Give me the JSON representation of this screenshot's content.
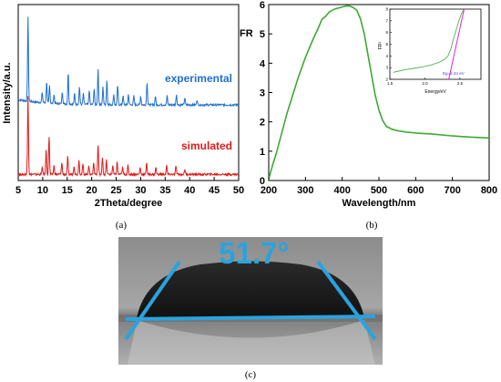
{
  "chart_data": [
    {
      "type": "line",
      "panel_label": "(a)",
      "xlabel": "2Theta/degree",
      "ylabel": "Intensity/a.u.",
      "xlim": [
        5,
        50
      ],
      "xticks": [
        "5",
        "10",
        "15",
        "20",
        "25",
        "30",
        "35",
        "40",
        "45",
        "50"
      ],
      "yticks": [],
      "grid": false,
      "series": [
        {
          "name": "experimental",
          "color": "#1f6fd1",
          "baseline": 0.43,
          "peaks": [
            {
              "x": 7.0,
              "h": 0.48
            },
            {
              "x": 9.9,
              "h": 0.06
            },
            {
              "x": 10.8,
              "h": 0.12
            },
            {
              "x": 11.4,
              "h": 0.1
            },
            {
              "x": 12.3,
              "h": 0.05
            },
            {
              "x": 14.0,
              "h": 0.07
            },
            {
              "x": 15.2,
              "h": 0.18
            },
            {
              "x": 16.5,
              "h": 0.06
            },
            {
              "x": 17.5,
              "h": 0.1
            },
            {
              "x": 18.3,
              "h": 0.06
            },
            {
              "x": 19.5,
              "h": 0.08
            },
            {
              "x": 20.5,
              "h": 0.09
            },
            {
              "x": 21.3,
              "h": 0.2
            },
            {
              "x": 22.3,
              "h": 0.1
            },
            {
              "x": 23.1,
              "h": 0.14
            },
            {
              "x": 24.5,
              "h": 0.06
            },
            {
              "x": 25.3,
              "h": 0.11
            },
            {
              "x": 26.4,
              "h": 0.05
            },
            {
              "x": 27.5,
              "h": 0.06
            },
            {
              "x": 28.6,
              "h": 0.05
            },
            {
              "x": 30.0,
              "h": 0.05
            },
            {
              "x": 31.3,
              "h": 0.13
            },
            {
              "x": 33.0,
              "h": 0.05
            },
            {
              "x": 35.4,
              "h": 0.05
            },
            {
              "x": 37.3,
              "h": 0.06
            },
            {
              "x": 39.0,
              "h": 0.04
            },
            {
              "x": 41.5,
              "h": 0.03
            }
          ]
        },
        {
          "name": "simulated",
          "color": "#e01a1a",
          "baseline": 0.035,
          "peaks": [
            {
              "x": 7.0,
              "h": 0.45
            },
            {
              "x": 9.9,
              "h": 0.04
            },
            {
              "x": 10.7,
              "h": 0.14
            },
            {
              "x": 11.3,
              "h": 0.22
            },
            {
              "x": 12.3,
              "h": 0.05
            },
            {
              "x": 13.9,
              "h": 0.07
            },
            {
              "x": 15.1,
              "h": 0.1
            },
            {
              "x": 16.4,
              "h": 0.05
            },
            {
              "x": 17.4,
              "h": 0.08
            },
            {
              "x": 18.2,
              "h": 0.06
            },
            {
              "x": 19.4,
              "h": 0.05
            },
            {
              "x": 20.4,
              "h": 0.07
            },
            {
              "x": 21.3,
              "h": 0.17
            },
            {
              "x": 22.2,
              "h": 0.1
            },
            {
              "x": 23.0,
              "h": 0.08
            },
            {
              "x": 24.3,
              "h": 0.05
            },
            {
              "x": 25.2,
              "h": 0.07
            },
            {
              "x": 26.3,
              "h": 0.04
            },
            {
              "x": 27.4,
              "h": 0.05
            },
            {
              "x": 29.9,
              "h": 0.04
            },
            {
              "x": 31.2,
              "h": 0.07
            },
            {
              "x": 33.1,
              "h": 0.04
            },
            {
              "x": 35.3,
              "h": 0.05
            },
            {
              "x": 37.2,
              "h": 0.05
            },
            {
              "x": 39.0,
              "h": 0.03
            }
          ]
        }
      ]
    },
    {
      "type": "line",
      "panel_label": "(b)",
      "xlabel": "Wavelength/nm",
      "ylabel": "FR",
      "xlim": [
        200,
        800
      ],
      "ylim": [
        0,
        6
      ],
      "xticks": [
        "200",
        "300",
        "400",
        "500",
        "600",
        "700",
        "800"
      ],
      "yticks": [
        "0",
        "1",
        "2",
        "3",
        "4",
        "5",
        "6"
      ],
      "grid": false,
      "series": [
        {
          "color": "#3daa35",
          "x": [
            200,
            210,
            220,
            235,
            250,
            265,
            280,
            300,
            320,
            335,
            345,
            355,
            365,
            380,
            395,
            410,
            420,
            430,
            440,
            450,
            460,
            470,
            480,
            490,
            500,
            510,
            520,
            535,
            550,
            575,
            600,
            650,
            700,
            750,
            800
          ],
          "y": [
            0.05,
            0.5,
            0.9,
            1.6,
            2.3,
            2.9,
            3.5,
            4.2,
            4.8,
            5.2,
            5.5,
            5.6,
            5.75,
            5.85,
            5.9,
            5.95,
            5.95,
            5.9,
            5.8,
            5.5,
            5.0,
            4.3,
            3.6,
            2.9,
            2.4,
            2.05,
            1.85,
            1.75,
            1.7,
            1.65,
            1.62,
            1.58,
            1.52,
            1.48,
            1.45
          ]
        }
      ],
      "inset": {
        "xlabel": "Energy/eV",
        "ylabel": "FR²",
        "xlim": [
          1.5,
          2.8
        ],
        "ylim": [
          2,
          8
        ],
        "xticks": [
          "1.5",
          "2.0",
          "2.5"
        ],
        "yticks": [
          "2",
          "3",
          "4",
          "5",
          "6",
          "7",
          "8"
        ],
        "annotation": "Eg=2.34 eV",
        "curve": {
          "color": "#3daa35",
          "x": [
            1.55,
            1.7,
            1.85,
            2.0,
            2.1,
            2.2,
            2.28,
            2.33,
            2.37,
            2.4,
            2.44,
            2.48,
            2.52,
            2.56
          ],
          "y": [
            2.6,
            2.8,
            2.95,
            3.1,
            3.25,
            3.45,
            3.7,
            4.0,
            4.6,
            5.3,
            6.1,
            6.9,
            7.6,
            8.0
          ]
        },
        "fit_line": {
          "color": "#d52ad8",
          "x": [
            2.34,
            2.56
          ],
          "y": [
            2.0,
            8.0
          ]
        }
      }
    }
  ],
  "photo": {
    "panel_label": "(c)",
    "angle_text": "51.7°",
    "accent_color": "#29a3e0"
  }
}
